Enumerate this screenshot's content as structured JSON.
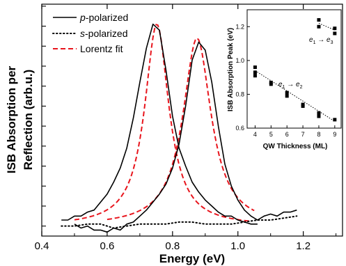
{
  "chart_data": [
    {
      "type": "line",
      "xlabel": "Energy (eV)",
      "ylabel_line1": "ISB Absorption per",
      "ylabel_line2": "Reflection (arb.u.)",
      "xlim": [
        0.4,
        1.32
      ],
      "ylim": [
        0,
        1.16
      ],
      "x_ticks": [
        0.4,
        0.6,
        0.8,
        1.0,
        1.2
      ],
      "x_tick_labels": [
        "0.4",
        "0.6",
        "0.8",
        "1.0",
        "1.2"
      ],
      "y_tick_labels_shown": false,
      "legend": {
        "placement": "top-left",
        "entries": [
          {
            "prefix": "p",
            "suffix": "-polarized",
            "style": "solid",
            "color": "#000000"
          },
          {
            "prefix": "s",
            "suffix": "-polarized",
            "style": "dotted",
            "color": "#000000"
          },
          {
            "prefix": "",
            "suffix": "Lorentz fit",
            "style": "dashed",
            "color": "#e8141c"
          }
        ]
      },
      "series": [
        {
          "polarization": "p",
          "peak": 1,
          "x": [
            0.46,
            0.48,
            0.5,
            0.52,
            0.54,
            0.56,
            0.58,
            0.6,
            0.62,
            0.64,
            0.66,
            0.68,
            0.7,
            0.72,
            0.74,
            0.76,
            0.78,
            0.8,
            0.82,
            0.84,
            0.86,
            0.88,
            0.9,
            0.92,
            0.94,
            0.96,
            0.98,
            1.0,
            1.02,
            1.04,
            1.06
          ],
          "y": [
            0.08,
            0.08,
            0.1,
            0.1,
            0.12,
            0.13,
            0.17,
            0.21,
            0.27,
            0.34,
            0.44,
            0.59,
            0.77,
            0.94,
            1.06,
            1.03,
            0.83,
            0.6,
            0.44,
            0.35,
            0.27,
            0.22,
            0.18,
            0.15,
            0.12,
            0.1,
            0.1,
            0.08,
            0.07,
            0.06,
            0.06
          ]
        },
        {
          "polarization": "p",
          "peak": 2,
          "x": [
            0.5,
            0.52,
            0.54,
            0.56,
            0.58,
            0.6,
            0.62,
            0.64,
            0.66,
            0.68,
            0.7,
            0.72,
            0.74,
            0.76,
            0.78,
            0.8,
            0.82,
            0.84,
            0.86,
            0.88,
            0.9,
            0.92,
            0.94,
            0.96,
            0.98,
            1.0,
            1.02,
            1.04,
            1.06,
            1.08,
            1.1,
            1.12,
            1.14,
            1.16,
            1.18
          ],
          "y": [
            0.06,
            0.04,
            0.05,
            0.03,
            0.03,
            0.02,
            0.04,
            0.03,
            0.06,
            0.07,
            0.1,
            0.13,
            0.17,
            0.21,
            0.26,
            0.34,
            0.46,
            0.65,
            0.88,
            0.97,
            0.93,
            0.77,
            0.55,
            0.36,
            0.25,
            0.18,
            0.13,
            0.1,
            0.08,
            0.1,
            0.11,
            0.1,
            0.12,
            0.12,
            0.13
          ]
        },
        {
          "polarization": "s",
          "x": [
            0.46,
            0.5,
            0.54,
            0.58,
            0.62,
            0.66,
            0.7,
            0.74,
            0.78,
            0.82,
            0.86,
            0.9,
            0.94,
            0.98,
            1.02,
            1.06,
            1.1,
            1.14,
            1.18
          ],
          "y": [
            0.05,
            0.05,
            0.06,
            0.06,
            0.04,
            0.05,
            0.06,
            0.06,
            0.06,
            0.07,
            0.07,
            0.06,
            0.06,
            0.06,
            0.07,
            0.08,
            0.08,
            0.09,
            0.1
          ]
        }
      ],
      "fits": [
        {
          "label": "Lorentz fit",
          "center": 0.752,
          "width": 0.09,
          "amplitude": 1.01,
          "range": [
            0.5,
            1.04
          ]
        },
        {
          "label": "Lorentz fit",
          "center": 0.875,
          "width": 0.105,
          "amplitude": 0.94,
          "range": [
            0.6,
            1.05
          ]
        }
      ]
    },
    {
      "type": "scatter",
      "xlabel": "QW Thickness (ML)",
      "ylabel": "ISB Absorption Peak (eV)",
      "xlim": [
        3.5,
        9.4
      ],
      "ylim": [
        0.6,
        1.3
      ],
      "x_ticks": [
        4,
        5,
        6,
        7,
        8,
        9
      ],
      "x_tick_labels": [
        "4",
        "5",
        "6",
        "7",
        "8",
        "9"
      ],
      "y_ticks": [
        0.6,
        0.8,
        1.0,
        1.2
      ],
      "y_tick_labels": [
        "0.6",
        "0.8",
        "1.0",
        "1.2"
      ],
      "series": [
        {
          "transition_from": "e",
          "from_sub": "1",
          "transition_to": "e",
          "to_sub": "2",
          "x": [
            4,
            4,
            4,
            5,
            5,
            6,
            6,
            7,
            7,
            8,
            8,
            9
          ],
          "y": [
            0.96,
            0.93,
            0.91,
            0.87,
            0.86,
            0.81,
            0.79,
            0.74,
            0.73,
            0.69,
            0.67,
            0.65
          ],
          "trend": [
            [
              4,
              0.94
            ],
            [
              9,
              0.64
            ]
          ]
        },
        {
          "transition_from": "e",
          "from_sub": "1",
          "transition_to": "e",
          "to_sub": "3",
          "x": [
            8,
            8,
            9,
            9
          ],
          "y": [
            1.24,
            1.2,
            1.19,
            1.16
          ],
          "trend": [
            [
              8,
              1.22
            ],
            [
              9,
              1.18
            ]
          ]
        }
      ]
    }
  ]
}
